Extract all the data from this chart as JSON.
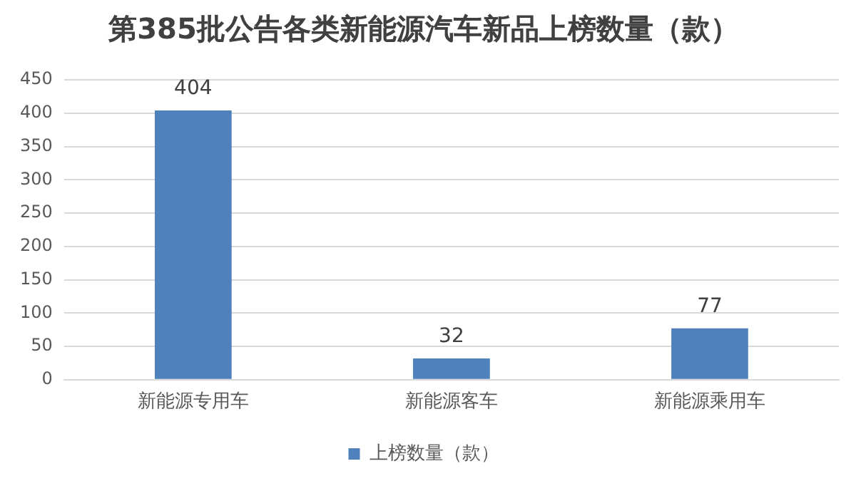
{
  "chart_data": {
    "type": "bar",
    "title": "第385批公告各类新能源汽车新品上榜数量（款）",
    "categories": [
      "新能源专用车",
      "新能源客车",
      "新能源乘用车"
    ],
    "series": [
      {
        "name": "上榜数量（款）",
        "color": "#4f81bd",
        "values": [
          404,
          32,
          77
        ]
      }
    ],
    "ylim": [
      0,
      450
    ],
    "yticks": [
      0,
      50,
      100,
      150,
      200,
      250,
      300,
      350,
      400,
      450
    ],
    "grid": "y",
    "legend": "bottom",
    "data_labels": true
  }
}
